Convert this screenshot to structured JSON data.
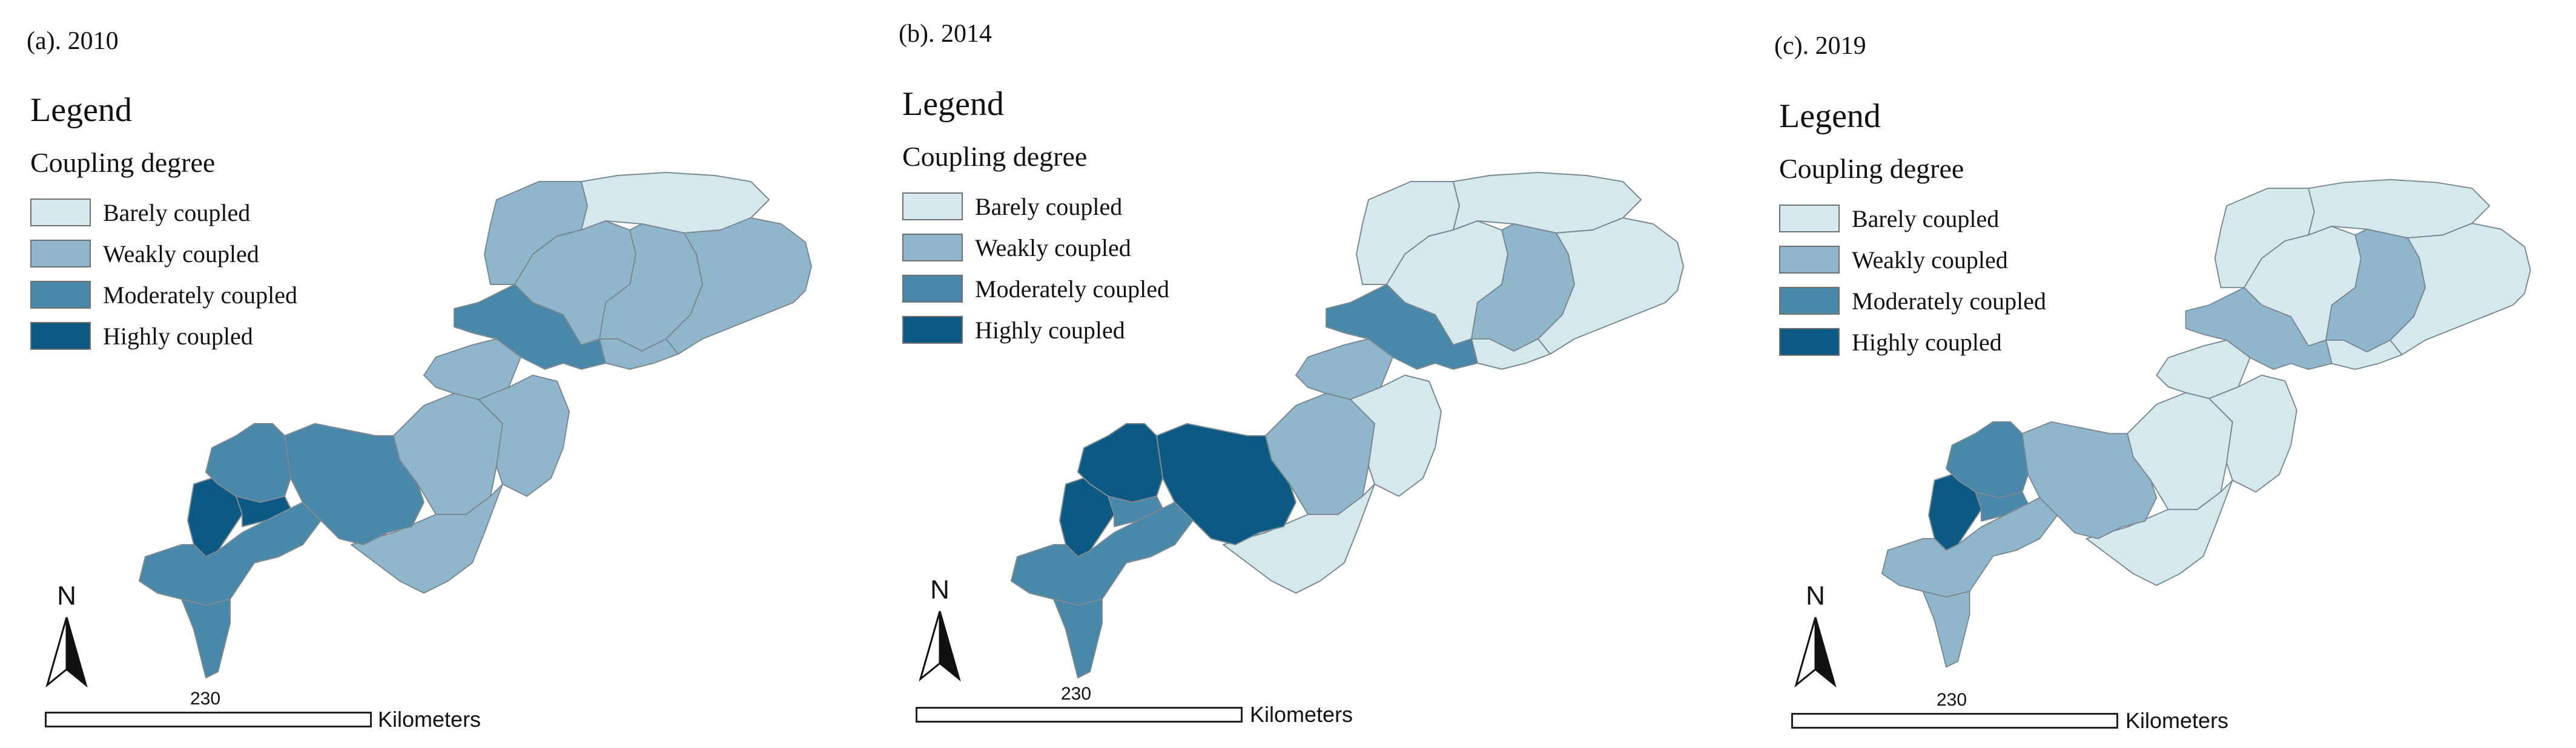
{
  "legend": {
    "title": "Legend",
    "subtitle": "Coupling degree",
    "items": [
      {
        "label": "Barely coupled",
        "color": "#d5e8ee"
      },
      {
        "label": "Weakly coupled",
        "color": "#8fb6ca"
      },
      {
        "label": "Moderately coupled",
        "color": "#4a88aa"
      },
      {
        "label": "Highly coupled",
        "color": "#0c5a84"
      }
    ]
  },
  "north_label": "N",
  "scale": {
    "value": "230",
    "unit": "Kilometers"
  },
  "panels": [
    {
      "title": "(a). 2010",
      "regions": {
        "ne_north": "weakly",
        "ne_top": "barely",
        "ne_west": "weakly",
        "ne_center": "weakly",
        "ne_south": "weakly",
        "ne_east": "weakly",
        "center_hub": "moderately",
        "mid_nw": "weakly",
        "mid_w": "weakly",
        "mid_e": "weakly",
        "mid_s": "weakly",
        "mid_left": "moderately",
        "sw_north": "moderately",
        "sw_core": "highly",
        "sw_core_e": "highly",
        "sw_south": "moderately",
        "sw_tail": "moderately"
      }
    },
    {
      "title": "(b). 2014",
      "regions": {
        "ne_north": "barely",
        "ne_top": "barely",
        "ne_west": "barely",
        "ne_center": "weakly",
        "ne_south": "barely",
        "ne_east": "barely",
        "center_hub": "moderately",
        "mid_nw": "weakly",
        "mid_w": "weakly",
        "mid_e": "barely",
        "mid_s": "barely",
        "mid_left": "highly",
        "sw_north": "highly",
        "sw_core": "highly",
        "sw_core_e": "moderately",
        "sw_south": "moderately",
        "sw_tail": "moderately"
      }
    },
    {
      "title": "(c). 2019",
      "regions": {
        "ne_north": "barely",
        "ne_top": "barely",
        "ne_west": "barely",
        "ne_center": "weakly",
        "ne_south": "barely",
        "ne_east": "barely",
        "center_hub": "weakly",
        "mid_nw": "barely",
        "mid_w": "barely",
        "mid_e": "barely",
        "mid_s": "barely",
        "mid_left": "weakly",
        "sw_north": "moderately",
        "sw_core": "highly",
        "sw_core_e": "moderately",
        "sw_south": "weakly",
        "sw_tail": "weakly"
      }
    }
  ]
}
